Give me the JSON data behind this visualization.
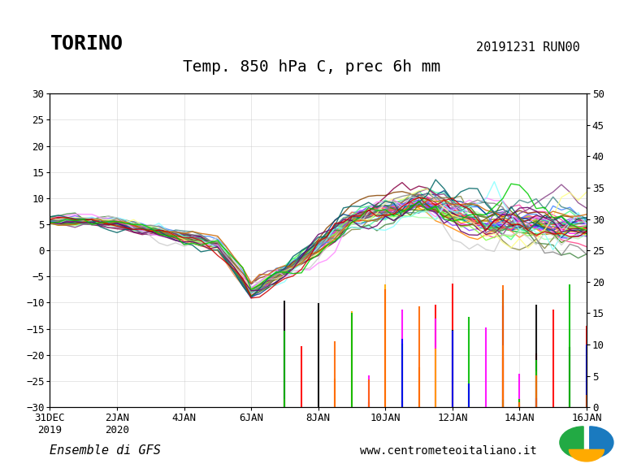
{
  "title_left": "TORINO",
  "title_right": "20191231 RUN00",
  "subtitle": "Temp. 850 hPa C, prec 6h mm",
  "footer_left": "Ensemble di GFS",
  "footer_right": "www.centrometeoitaliano.it",
  "left_ylim": [
    -30,
    30
  ],
  "right_ylim": [
    0,
    50
  ],
  "left_yticks": [
    -30,
    -25,
    -20,
    -15,
    -10,
    -5,
    0,
    5,
    10,
    15,
    20,
    25,
    30
  ],
  "right_yticks": [
    0,
    5,
    10,
    15,
    20,
    25,
    30,
    35,
    40,
    45,
    50
  ],
  "x_labels": [
    "31DEC\n2019",
    "2JAN\n2020",
    "4JAN",
    "6JAN",
    "8JAN",
    "10JAN",
    "12JAN",
    "14JAN",
    "16JAN"
  ],
  "x_positions": [
    0,
    2,
    4,
    6,
    8,
    10,
    12,
    14,
    16
  ],
  "background_color": "#ffffff",
  "plot_bg_color": "#ffffff",
  "grid_color": "#cccccc",
  "text_color": "#000000",
  "font_family": "monospace"
}
